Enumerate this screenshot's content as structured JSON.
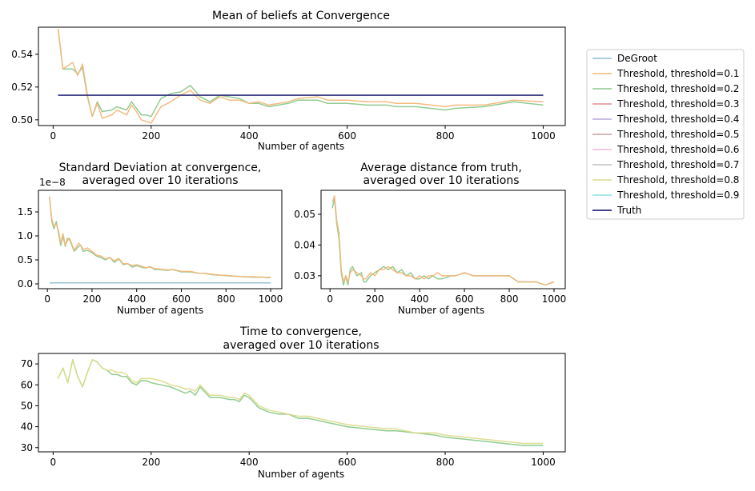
{
  "colors": {
    "DeGroot": "#8fbcd4",
    "Threshold, threshold=0.1": "#f4b77a",
    "Threshold, threshold=0.2": "#8cc98c",
    "Threshold, threshold=0.3": "#e08f8f",
    "Threshold, threshold=0.4": "#b9a9dd",
    "Threshold, threshold=0.5": "#c2a49c",
    "Threshold, threshold=0.6": "#efb5dc",
    "Threshold, threshold=0.7": "#c0c0c0",
    "Threshold, threshold=0.8": "#dcdc8c",
    "Threshold, threshold=0.9": "#8cdfe6",
    "Truth": "#2a2a7a"
  },
  "legend": {
    "placement": "right",
    "entries": [
      "DeGroot",
      "Threshold, threshold=0.1",
      "Threshold, threshold=0.2",
      "Threshold, threshold=0.3",
      "Threshold, threshold=0.4",
      "Threshold, threshold=0.5",
      "Threshold, threshold=0.6",
      "Threshold, threshold=0.7",
      "Threshold, threshold=0.8",
      "Threshold, threshold=0.9",
      "Truth"
    ]
  },
  "chart_data": [
    {
      "id": "mean",
      "type": "line",
      "title": "Mean of beliefs at Convergence",
      "xlabel": "Number of agents",
      "ylabel": "",
      "offset_text": "",
      "xlim": [
        -30,
        1045
      ],
      "ylim": [
        0.4965,
        0.5565
      ],
      "xticks": [
        0,
        200,
        400,
        600,
        800,
        1000
      ],
      "yticks": [
        0.5,
        0.52,
        0.54
      ],
      "ytick_labels": [
        "0.50",
        "0.52",
        "0.54"
      ],
      "grid": false,
      "x": [
        10,
        20,
        40,
        50,
        60,
        70,
        80,
        90,
        100,
        120,
        130,
        150,
        160,
        170,
        180,
        190,
        200,
        220,
        240,
        260,
        280,
        300,
        320,
        340,
        360,
        380,
        400,
        420,
        440,
        480,
        500,
        540,
        560,
        600,
        640,
        680,
        700,
        740,
        800,
        820,
        880,
        900,
        940,
        1000
      ],
      "series": [
        {
          "name": "Threshold, threshold=0.2",
          "values": [
            0.5555,
            0.531,
            0.531,
            0.528,
            0.532,
            0.514,
            0.502,
            0.511,
            0.505,
            0.506,
            0.508,
            0.506,
            0.511,
            0.507,
            0.503,
            0.503,
            0.502,
            0.513,
            0.516,
            0.517,
            0.521,
            0.514,
            0.511,
            0.515,
            0.514,
            0.513,
            0.51,
            0.51,
            0.508,
            0.51,
            0.512,
            0.512,
            0.51,
            0.51,
            0.509,
            0.509,
            0.508,
            0.508,
            0.506,
            0.507,
            0.508,
            0.509,
            0.511,
            0.509
          ]
        },
        {
          "name": "Threshold, threshold=0.1",
          "values": [
            0.5555,
            0.531,
            0.535,
            0.527,
            0.534,
            0.515,
            0.502,
            0.51,
            0.501,
            0.503,
            0.506,
            0.503,
            0.509,
            0.505,
            0.5,
            0.499,
            0.498,
            0.508,
            0.511,
            0.515,
            0.518,
            0.512,
            0.51,
            0.514,
            0.512,
            0.512,
            0.51,
            0.511,
            0.509,
            0.511,
            0.513,
            0.514,
            0.512,
            0.512,
            0.511,
            0.511,
            0.51,
            0.51,
            0.508,
            0.509,
            0.509,
            0.51,
            0.512,
            0.511
          ]
        },
        {
          "name": "Truth",
          "values": [
            0.515,
            0.515,
            0.515,
            0.515,
            0.515,
            0.515,
            0.515,
            0.515,
            0.515,
            0.515,
            0.515,
            0.515,
            0.515,
            0.515,
            0.515,
            0.515,
            0.515,
            0.515,
            0.515,
            0.515,
            0.515,
            0.515,
            0.515,
            0.515,
            0.515,
            0.515,
            0.515,
            0.515,
            0.515,
            0.515,
            0.515,
            0.515,
            0.515,
            0.515,
            0.515,
            0.515,
            0.515,
            0.515,
            0.515,
            0.515,
            0.515,
            0.515,
            0.515,
            0.515
          ]
        }
      ]
    },
    {
      "id": "std",
      "type": "line",
      "title": "Standard Deviation at convergence,\naveraged over 10 iterations",
      "xlabel": "Number of agents",
      "ylabel": "",
      "offset_text": "1e−8",
      "xlim": [
        -40,
        1050
      ],
      "ylim": [
        -0.1,
        1.95
      ],
      "xticks": [
        0,
        200,
        400,
        600,
        800,
        1000
      ],
      "yticks": [
        0.0,
        0.5,
        1.0,
        1.5
      ],
      "ytick_labels": [
        "0.0",
        "0.5",
        "1.0",
        "1.5"
      ],
      "grid": false,
      "x": [
        10,
        20,
        30,
        40,
        50,
        60,
        70,
        80,
        90,
        100,
        120,
        140,
        150,
        160,
        180,
        200,
        220,
        240,
        260,
        280,
        300,
        320,
        340,
        360,
        380,
        400,
        420,
        440,
        460,
        480,
        500,
        540,
        560,
        600,
        640,
        680,
        700,
        740,
        780,
        800,
        840,
        880,
        920,
        960,
        1000
      ],
      "series": [
        {
          "name": "Threshold, threshold=0.2",
          "values": [
            1.82,
            1.3,
            1.15,
            1.3,
            1.05,
            0.8,
            1.0,
            0.78,
            0.95,
            0.92,
            0.68,
            0.78,
            0.8,
            0.68,
            0.7,
            0.65,
            0.58,
            0.55,
            0.5,
            0.55,
            0.45,
            0.52,
            0.4,
            0.42,
            0.35,
            0.38,
            0.35,
            0.33,
            0.36,
            0.3,
            0.3,
            0.28,
            0.3,
            0.25,
            0.25,
            0.22,
            0.22,
            0.19,
            0.18,
            0.17,
            0.16,
            0.15,
            0.14,
            0.14,
            0.13
          ]
        },
        {
          "name": "Threshold, threshold=0.1",
          "values": [
            1.8,
            1.35,
            1.2,
            1.25,
            1.1,
            0.85,
            1.05,
            0.8,
            0.9,
            0.95,
            0.7,
            0.85,
            0.8,
            0.72,
            0.75,
            0.68,
            0.6,
            0.58,
            0.52,
            0.55,
            0.48,
            0.53,
            0.42,
            0.42,
            0.38,
            0.4,
            0.37,
            0.34,
            0.35,
            0.32,
            0.31,
            0.29,
            0.3,
            0.26,
            0.26,
            0.22,
            0.22,
            0.2,
            0.18,
            0.18,
            0.16,
            0.15,
            0.15,
            0.14,
            0.14
          ]
        },
        {
          "name": "DeGroot",
          "values": [
            0.02,
            0.02,
            0.02,
            0.02,
            0.02,
            0.02,
            0.02,
            0.02,
            0.02,
            0.02,
            0.02,
            0.02,
            0.02,
            0.02,
            0.02,
            0.02,
            0.02,
            0.02,
            0.02,
            0.02,
            0.02,
            0.02,
            0.02,
            0.02,
            0.02,
            0.02,
            0.02,
            0.02,
            0.02,
            0.02,
            0.02,
            0.02,
            0.02,
            0.02,
            0.02,
            0.02,
            0.02,
            0.02,
            0.02,
            0.02,
            0.02,
            0.02,
            0.02,
            0.02,
            0.02
          ]
        }
      ]
    },
    {
      "id": "dist",
      "type": "line",
      "title": "Average distance from truth,\naveraged over 10 iterations",
      "xlabel": "Number of agents",
      "ylabel": "",
      "offset_text": "",
      "xlim": [
        -40,
        1050
      ],
      "ylim": [
        0.0258,
        0.0578
      ],
      "xticks": [
        0,
        200,
        400,
        600,
        800,
        1000
      ],
      "yticks": [
        0.03,
        0.04,
        0.05
      ],
      "ytick_labels": [
        "0.03",
        "0.04",
        "0.05"
      ],
      "grid": false,
      "x": [
        10,
        20,
        30,
        40,
        50,
        60,
        70,
        80,
        90,
        100,
        120,
        140,
        150,
        160,
        180,
        200,
        220,
        240,
        260,
        280,
        300,
        320,
        340,
        360,
        380,
        400,
        420,
        440,
        460,
        480,
        500,
        540,
        560,
        600,
        640,
        680,
        700,
        740,
        780,
        800,
        840,
        880,
        920,
        960,
        1000
      ],
      "series": [
        {
          "name": "Threshold, threshold=0.2",
          "values": [
            0.052,
            0.055,
            0.047,
            0.042,
            0.031,
            0.027,
            0.03,
            0.027,
            0.032,
            0.033,
            0.03,
            0.031,
            0.028,
            0.028,
            0.03,
            0.031,
            0.032,
            0.033,
            0.032,
            0.033,
            0.031,
            0.032,
            0.03,
            0.031,
            0.029,
            0.029,
            0.03,
            0.029,
            0.03,
            0.029,
            0.029,
            0.03,
            0.03,
            0.031,
            0.03,
            0.03,
            0.03,
            0.03,
            0.03,
            0.03,
            0.028,
            0.028,
            0.028,
            0.027,
            0.028
          ]
        },
        {
          "name": "Threshold, threshold=0.1",
          "values": [
            0.054,
            0.056,
            0.048,
            0.044,
            0.032,
            0.028,
            0.03,
            0.028,
            0.031,
            0.032,
            0.031,
            0.03,
            0.029,
            0.029,
            0.031,
            0.03,
            0.032,
            0.032,
            0.033,
            0.032,
            0.031,
            0.031,
            0.03,
            0.03,
            0.029,
            0.03,
            0.029,
            0.03,
            0.03,
            0.031,
            0.03,
            0.03,
            0.03,
            0.031,
            0.03,
            0.03,
            0.03,
            0.03,
            0.03,
            0.03,
            0.028,
            0.028,
            0.028,
            0.027,
            0.028
          ]
        }
      ]
    },
    {
      "id": "time",
      "type": "line",
      "title": "Time to convergence,\naveraged over 10 iterations",
      "xlabel": "Number of agents",
      "ylabel": "",
      "offset_text": "",
      "xlim": [
        -30,
        1045
      ],
      "ylim": [
        28,
        75
      ],
      "xticks": [
        0,
        200,
        400,
        600,
        800,
        1000
      ],
      "yticks": [
        30,
        40,
        50,
        60,
        70
      ],
      "ytick_labels": [
        "30",
        "40",
        "50",
        "60",
        "70"
      ],
      "grid": false,
      "x": [
        10,
        20,
        30,
        40,
        50,
        60,
        70,
        80,
        90,
        100,
        110,
        120,
        130,
        140,
        150,
        160,
        170,
        180,
        190,
        200,
        220,
        240,
        260,
        270,
        280,
        290,
        300,
        320,
        340,
        360,
        370,
        380,
        390,
        400,
        420,
        440,
        460,
        480,
        500,
        520,
        540,
        560,
        600,
        640,
        680,
        700,
        740,
        780,
        800,
        840,
        880,
        920,
        960,
        1000
      ],
      "series": [
        {
          "name": "Threshold, threshold=0.2",
          "values": [
            63,
            68,
            61,
            72,
            64,
            59,
            66,
            72,
            71,
            68,
            67,
            65,
            65,
            64,
            64,
            61,
            60,
            62,
            62,
            61,
            60,
            59,
            57,
            56,
            57,
            55,
            59,
            54,
            54,
            53,
            53,
            52,
            55,
            54,
            49,
            47,
            46,
            46,
            44,
            44,
            43,
            42,
            40,
            39,
            38,
            38,
            37,
            36,
            35,
            34,
            33,
            32,
            31,
            31
          ]
        },
        {
          "name": "Threshold, threshold=0.8",
          "values": [
            63,
            68,
            61,
            72,
            64,
            59,
            66,
            72,
            71,
            68,
            67,
            67,
            66,
            66,
            65,
            62,
            61,
            63,
            63,
            63,
            62,
            60,
            59,
            58,
            58,
            57,
            60,
            55,
            55,
            54,
            54,
            53,
            56,
            55,
            50,
            48,
            47,
            46,
            45,
            45,
            44,
            43,
            41,
            40,
            39,
            39,
            37,
            37,
            36,
            35,
            34,
            33,
            32,
            32
          ]
        }
      ]
    }
  ]
}
